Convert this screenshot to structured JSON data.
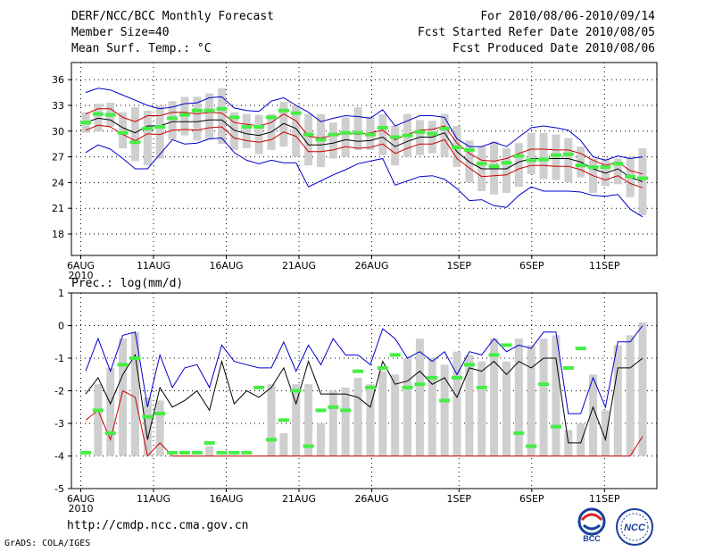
{
  "header": {
    "title": "DERF/NCC/BCC Monthly Forecast",
    "member_size": "Member Size=40",
    "variable": "Mean Surf. Temp.: °C",
    "forecast_period": "For 2010/08/06-2010/09/14",
    "start_date": "Fcst Started Refer Date 2010/08/05",
    "produced_date": "Fcst Produced Date 2010/08/06"
  },
  "footer": {
    "url": "http://cmdp.ncc.cma.gov.cn",
    "grads": "GrADS: COLA/IGES",
    "logo_bcc": "BCC",
    "logo_ncc": "NCC"
  },
  "colors": {
    "box": "#cfcfcf",
    "ensemble_mean": "#000000",
    "inner_band": "#cc0000",
    "outer_band": "#0000cc",
    "marker": "#44ee44"
  },
  "chart_data": [
    {
      "id": "temperature",
      "type": "line",
      "title": "Mean Surf. Temp.: °C",
      "ylabel": "°C",
      "ylim": [
        15.5,
        38
      ],
      "yticks": [
        18,
        21,
        24,
        27,
        30,
        33,
        36
      ],
      "x_days": 40,
      "xticks": [
        {
          "day": 0,
          "label": "6AUG",
          "sub": "2010"
        },
        {
          "day": 5,
          "label": "11AUG"
        },
        {
          "day": 10,
          "label": "16AUG"
        },
        {
          "day": 15,
          "label": "21AUG"
        },
        {
          "day": 20,
          "label": "26AUG"
        },
        {
          "day": 26,
          "label": "1SEP"
        },
        {
          "day": 31,
          "label": "6SEP"
        },
        {
          "day": 36,
          "label": "11SEP"
        }
      ],
      "series": [
        {
          "name": "mean",
          "values": [
            31.0,
            31.5,
            31.3,
            30.4,
            29.8,
            30.6,
            30.6,
            31.1,
            31.1,
            31.1,
            31.3,
            31.3,
            30.1,
            29.7,
            29.5,
            29.9,
            30.9,
            30.3,
            28.4,
            28.4,
            28.6,
            29.0,
            28.8,
            28.9,
            29.3,
            28.2,
            28.8,
            29.3,
            29.3,
            29.8,
            27.6,
            26.4,
            25.6,
            25.6,
            25.6,
            26.4,
            26.8,
            26.8,
            26.8,
            26.8,
            26.4,
            25.6,
            25.1,
            25.6,
            24.6,
            24.1
          ]
        },
        {
          "name": "upper_inner",
          "values": [
            32.0,
            32.6,
            32.6,
            31.6,
            31.1,
            31.8,
            31.8,
            32.2,
            32.2,
            32.0,
            32.2,
            32.1,
            31.0,
            30.8,
            30.6,
            31.0,
            32.0,
            31.2,
            29.4,
            29.2,
            29.5,
            29.8,
            29.6,
            29.8,
            30.1,
            29.0,
            29.6,
            30.1,
            30.2,
            30.6,
            28.6,
            27.4,
            26.6,
            26.5,
            26.8,
            27.4,
            27.9,
            27.9,
            27.8,
            27.8,
            27.4,
            26.6,
            26.0,
            26.4,
            25.4,
            25.0
          ]
        },
        {
          "name": "lower_inner",
          "values": [
            30.1,
            30.7,
            30.5,
            29.6,
            28.9,
            29.7,
            29.6,
            30.1,
            30.2,
            30.1,
            30.4,
            30.5,
            29.2,
            28.9,
            28.7,
            29.0,
            29.9,
            29.4,
            27.6,
            27.6,
            27.8,
            28.2,
            28.0,
            28.1,
            28.5,
            27.4,
            28.0,
            28.5,
            28.5,
            29.0,
            26.8,
            25.7,
            24.7,
            24.8,
            24.9,
            25.6,
            26.0,
            26.0,
            25.9,
            25.9,
            25.5,
            24.8,
            24.3,
            24.8,
            23.9,
            23.4
          ]
        },
        {
          "name": "upper_outer",
          "values": [
            34.5,
            35.0,
            34.8,
            34.2,
            33.6,
            33.0,
            32.6,
            32.8,
            33.2,
            33.3,
            33.9,
            34.0,
            32.7,
            32.4,
            32.3,
            33.5,
            33.9,
            33.0,
            32.2,
            31.1,
            31.5,
            31.8,
            31.7,
            31.5,
            32.5,
            30.6,
            31.2,
            31.8,
            31.8,
            31.6,
            29.1,
            28.2,
            28.2,
            28.7,
            28.2,
            29.3,
            30.4,
            30.6,
            30.4,
            30.1,
            28.9,
            27.0,
            26.6,
            27.1,
            26.8,
            27.0
          ]
        },
        {
          "name": "lower_outer",
          "values": [
            27.5,
            28.4,
            27.9,
            26.8,
            25.6,
            25.6,
            27.3,
            29.0,
            28.5,
            28.6,
            29.1,
            29.2,
            27.5,
            26.6,
            26.2,
            26.6,
            26.3,
            26.3,
            23.5,
            24.2,
            24.9,
            25.5,
            26.2,
            26.5,
            26.8,
            23.7,
            24.2,
            24.7,
            24.8,
            24.4,
            23.3,
            21.9,
            22.0,
            21.3,
            21.1,
            22.5,
            23.5,
            23.0,
            23.0,
            23.0,
            22.9,
            22.5,
            22.4,
            22.6,
            20.9,
            20.0
          ]
        },
        {
          "name": "box_top",
          "values": [
            32.2,
            33.2,
            33.3,
            32.2,
            32.8,
            32.4,
            33.0,
            33.5,
            34.0,
            34.0,
            34.4,
            35.0,
            32.2,
            32.0,
            31.9,
            32.0,
            33.4,
            33.0,
            32.0,
            32.0,
            31.0,
            31.6,
            32.8,
            31.7,
            32.0,
            30.6,
            32.0,
            31.3,
            31.2,
            32.0,
            30.6,
            28.9,
            28.2,
            28.8,
            28.0,
            28.6,
            29.8,
            29.8,
            29.6,
            29.2,
            28.2,
            26.8,
            26.8,
            26.8,
            27.0,
            28.0
          ]
        },
        {
          "name": "box_bottom",
          "values": [
            29.8,
            30.0,
            30.5,
            28.0,
            26.5,
            26.0,
            26.8,
            29.0,
            29.5,
            28.9,
            29.0,
            28.5,
            27.8,
            28.0,
            27.3,
            27.8,
            28.2,
            27.0,
            26.0,
            25.8,
            26.8,
            27.0,
            27.8,
            27.8,
            27.2,
            26.0,
            27.0,
            27.2,
            27.4,
            27.0,
            25.8,
            24.0,
            23.0,
            22.6,
            22.8,
            23.5,
            25.0,
            24.4,
            24.3,
            24.0,
            24.6,
            22.8,
            23.6,
            23.8,
            22.3,
            20.2
          ]
        },
        {
          "name": "marker",
          "values": [
            31.0,
            32.0,
            31.9,
            29.8,
            28.7,
            30.3,
            30.5,
            31.5,
            31.9,
            32.4,
            32.4,
            32.6,
            31.6,
            30.5,
            30.5,
            31.6,
            32.4,
            32.1,
            29.6,
            29.0,
            29.6,
            29.8,
            29.8,
            29.6,
            30.4,
            29.3,
            29.5,
            29.9,
            29.7,
            30.3,
            28.1,
            27.8,
            26.2,
            25.9,
            26.3,
            27.1,
            26.6,
            26.7,
            27.2,
            27.3,
            26.0,
            25.8,
            25.8,
            26.2,
            24.7,
            24.5
          ]
        }
      ]
    },
    {
      "id": "precipitation",
      "type": "line",
      "title": "Prec.: log(mm/d)",
      "ylabel": "log(mm/d)",
      "ylim": [
        -5,
        1
      ],
      "yticks": [
        -5,
        -4,
        -3,
        -2,
        -1,
        0,
        1
      ],
      "x_days": 40,
      "xticks": [
        {
          "day": 0,
          "label": "6AUG",
          "sub": "2010"
        },
        {
          "day": 5,
          "label": "11AUG"
        },
        {
          "day": 10,
          "label": "16AUG"
        },
        {
          "day": 15,
          "label": "21AUG"
        },
        {
          "day": 20,
          "label": "26AUG"
        },
        {
          "day": 26,
          "label": "1SEP"
        },
        {
          "day": 31,
          "label": "6SEP"
        },
        {
          "day": 36,
          "label": "11SEP"
        }
      ],
      "series": [
        {
          "name": "mean",
          "values": [
            -2.1,
            -1.6,
            -2.4,
            -1.5,
            -0.9,
            -3.5,
            -1.9,
            -2.5,
            -2.3,
            -2.0,
            -2.6,
            -1.1,
            -2.4,
            -2.0,
            -2.2,
            -1.9,
            -1.3,
            -2.4,
            -1.1,
            -2.1,
            -2.1,
            -2.1,
            -2.2,
            -2.5,
            -1.1,
            -1.8,
            -1.7,
            -1.4,
            -1.8,
            -1.6,
            -2.2,
            -1.3,
            -1.4,
            -1.1,
            -1.5,
            -1.1,
            -1.3,
            -1.0,
            -1.0,
            -3.6,
            -3.6,
            -2.5,
            -3.5,
            -1.3,
            -1.3,
            -1.0
          ]
        },
        {
          "name": "upper_outer",
          "values": [
            -1.4,
            -0.4,
            -1.4,
            -0.3,
            -0.2,
            -2.5,
            -0.9,
            -1.9,
            -1.3,
            -1.2,
            -1.9,
            -0.6,
            -1.1,
            -1.2,
            -1.3,
            -1.3,
            -0.5,
            -1.4,
            -0.6,
            -1.2,
            -0.4,
            -0.9,
            -0.9,
            -1.2,
            -0.1,
            -0.4,
            -1.0,
            -0.8,
            -1.1,
            -0.8,
            -1.5,
            -0.8,
            -0.9,
            -0.4,
            -0.8,
            -0.6,
            -0.7,
            -0.2,
            -0.2,
            -2.7,
            -2.7,
            -1.6,
            -2.5,
            -0.5,
            -0.5,
            0.0
          ]
        },
        {
          "name": "lower_outer",
          "values": [
            -2.9,
            -2.6,
            -3.5,
            -2.0,
            -2.2,
            -4.0,
            -3.6,
            -4.0,
            -4.0,
            -4.0,
            -4.0,
            -4.0,
            -4.0,
            -4.0,
            -4.0,
            -4.0,
            -4.0,
            -4.0,
            -4.0,
            -4.0,
            -4.0,
            -4.0,
            -4.0,
            -4.0,
            -4.0,
            -4.0,
            -4.0,
            -4.0,
            -4.0,
            -4.0,
            -4.0,
            -4.0,
            -4.0,
            -4.0,
            -4.0,
            -4.0,
            -4.0,
            -4.0,
            -4.0,
            -4.0,
            -4.0,
            -4.0,
            -4.0,
            -4.0,
            -4.0,
            -3.4
          ]
        },
        {
          "name": "box_top",
          "values": [
            -4.0,
            -1.8,
            -1.3,
            -0.4,
            -0.2,
            -2.2,
            -2.3,
            -4.0,
            -4.0,
            -4.0,
            -3.7,
            -4.0,
            -4.0,
            -4.0,
            -4.0,
            -1.8,
            -3.3,
            -1.8,
            -1.8,
            -3.0,
            -2.0,
            -1.9,
            -1.6,
            -1.8,
            -1.4,
            -1.5,
            -1.0,
            -0.4,
            -1.0,
            -1.2,
            -0.8,
            -0.9,
            -1.1,
            -0.4,
            -1.1,
            -0.4,
            -0.6,
            -0.4,
            -0.3,
            -3.2,
            -3.0,
            -1.5,
            -2.6,
            -0.6,
            -0.3,
            0.1
          ]
        },
        {
          "name": "box_bottom",
          "values": [
            -4.0,
            -4.0,
            -4.0,
            -4.0,
            -4.0,
            -4.0,
            -4.0,
            -4.0,
            -4.0,
            -4.0,
            -4.0,
            -4.0,
            -4.0,
            -4.0,
            -4.0,
            -4.0,
            -4.0,
            -4.0,
            -4.0,
            -4.0,
            -4.0,
            -4.0,
            -4.0,
            -4.0,
            -4.0,
            -4.0,
            -4.0,
            -4.0,
            -4.0,
            -4.0,
            -4.0,
            -4.0,
            -4.0,
            -4.0,
            -4.0,
            -4.0,
            -4.0,
            -4.0,
            -4.0,
            -4.0,
            -4.0,
            -4.0,
            -4.0,
            -4.0,
            -4.0,
            -4.0
          ]
        },
        {
          "name": "marker",
          "values": [
            -3.9,
            -2.6,
            -3.3,
            -1.2,
            -1.0,
            -2.8,
            -2.7,
            -3.9,
            -3.9,
            -3.9,
            -3.6,
            -3.9,
            -3.9,
            -3.9,
            -1.9,
            -3.5,
            -2.9,
            -2.0,
            -3.7,
            -2.6,
            -2.5,
            -2.6,
            -1.4,
            -1.9,
            -1.3,
            -0.9,
            -1.9,
            -1.8,
            -1.6,
            -2.3,
            -1.6,
            -1.2,
            -1.9,
            -0.9,
            -0.6,
            -3.3,
            -3.7,
            -1.8,
            -3.1,
            -1.3,
            -0.7,
            null,
            null,
            null,
            null,
            null
          ]
        }
      ]
    }
  ]
}
